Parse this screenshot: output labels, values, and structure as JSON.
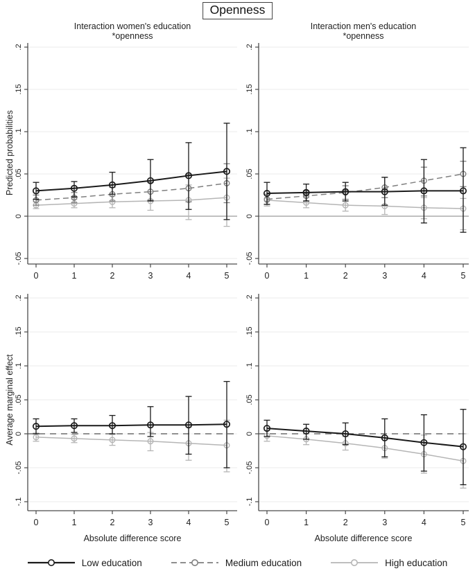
{
  "figure": {
    "title": "Openness"
  },
  "styles": {
    "low": {
      "color": "#1a1a1a",
      "dash": "",
      "width": 2
    },
    "medium": {
      "color": "#7f7f7f",
      "dash": "8,5",
      "width": 1.5
    },
    "high": {
      "color": "#b5b5b5",
      "dash": "",
      "width": 1.5
    }
  },
  "legend": {
    "items": [
      {
        "key": "low",
        "label": "Low education"
      },
      {
        "key": "medium",
        "label": "Medium education"
      },
      {
        "key": "high",
        "label": "High education"
      }
    ]
  },
  "chart_data": {
    "type": "line",
    "title": "Openness",
    "x": [
      0,
      1,
      2,
      3,
      4,
      5
    ],
    "xlabel": "Absolute difference score",
    "ytick_labels_top": [
      ".2",
      ".15",
      ".1",
      ".05",
      "0",
      "-.05"
    ],
    "ytick_values_top": [
      0.2,
      0.15,
      0.1,
      0.05,
      0,
      -0.05
    ],
    "ytick_labels_bottom": [
      ".2",
      ".15",
      ".1",
      ".05",
      "0",
      "-.05",
      "-.1"
    ],
    "ytick_values_bottom": [
      0.2,
      0.15,
      0.1,
      0.05,
      0,
      -0.05,
      -0.1
    ],
    "panels": [
      {
        "id": "top-left",
        "title_lines": [
          "Interaction women's education",
          "*openness"
        ],
        "ylabel": "Predicted probabilities",
        "zero_line": "solid",
        "series": [
          {
            "key": "low",
            "name": "Low education",
            "values": [
              0.03,
              0.033,
              0.037,
              0.042,
              0.048,
              0.053
            ],
            "ci_low": [
              0.02,
              0.023,
              0.026,
              0.018,
              0.008,
              -0.004
            ],
            "ci_high": [
              0.04,
              0.041,
              0.052,
              0.067,
              0.087,
              0.11
            ]
          },
          {
            "key": "medium",
            "name": "Medium education",
            "values": [
              0.019,
              0.022,
              0.026,
              0.029,
              0.033,
              0.039
            ],
            "ci_low": [
              0.013,
              0.016,
              0.018,
              0.019,
              0.017,
              0.016
            ],
            "ci_high": [
              0.025,
              0.028,
              0.034,
              0.04,
              0.049,
              0.062
            ]
          },
          {
            "key": "high",
            "name": "High education",
            "values": [
              0.013,
              0.015,
              0.017,
              0.018,
              0.019,
              0.022
            ],
            "ci_low": [
              0.009,
              0.01,
              0.01,
              0.007,
              -0.004,
              -0.012
            ],
            "ci_high": [
              0.017,
              0.02,
              0.024,
              0.029,
              0.037,
              0.045
            ]
          }
        ]
      },
      {
        "id": "top-right",
        "title_lines": [
          "Interaction men's education",
          "*openness"
        ],
        "zero_line": "solid",
        "series": [
          {
            "key": "low",
            "name": "Low education",
            "values": [
              0.027,
              0.028,
              0.029,
              0.029,
              0.03,
              0.03
            ],
            "ci_low": [
              0.014,
              0.018,
              0.018,
              0.013,
              -0.008,
              -0.019
            ],
            "ci_high": [
              0.04,
              0.038,
              0.04,
              0.046,
              0.067,
              0.081
            ]
          },
          {
            "key": "medium",
            "name": "Medium education",
            "values": [
              0.02,
              0.024,
              0.028,
              0.034,
              0.042,
              0.05
            ],
            "ci_low": [
              0.014,
              0.018,
              0.02,
              0.022,
              0.024,
              0.035
            ],
            "ci_high": [
              0.026,
              0.03,
              0.036,
              0.046,
              0.058,
              0.065
            ]
          },
          {
            "key": "high",
            "name": "High education",
            "values": [
              0.019,
              0.016,
              0.013,
              0.012,
              0.01,
              0.009
            ],
            "ci_low": [
              0.012,
              0.01,
              0.006,
              0.002,
              -0.003,
              -0.016
            ],
            "ci_high": [
              0.026,
              0.022,
              0.02,
              0.022,
              0.022,
              0.021
            ]
          }
        ]
      },
      {
        "id": "bottom-left",
        "ylabel": "Average marginal effect",
        "xlabel_show": true,
        "zero_line": "dashed",
        "series": [
          {
            "key": "low",
            "name": "Low education",
            "values": [
              0.011,
              0.012,
              0.012,
              0.013,
              0.013,
              0.014
            ],
            "ci_low": [
              0.0,
              0.002,
              0.0,
              -0.004,
              -0.03,
              -0.05
            ],
            "ci_high": [
              0.022,
              0.022,
              0.027,
              0.04,
              0.055,
              0.077
            ]
          },
          {
            "key": "high",
            "name": "High education",
            "values": [
              -0.005,
              -0.007,
              -0.009,
              -0.011,
              -0.014,
              -0.017
            ],
            "ci_low": [
              -0.011,
              -0.013,
              -0.017,
              -0.025,
              -0.039,
              -0.056
            ],
            "ci_high": [
              0.001,
              -0.001,
              -0.001,
              0.002,
              0.01,
              0.02
            ]
          }
        ]
      },
      {
        "id": "bottom-right",
        "xlabel_show": true,
        "zero_line": "dashed",
        "series": [
          {
            "key": "low",
            "name": "Low education",
            "values": [
              0.008,
              0.004,
              0.0,
              -0.006,
              -0.013,
              -0.019
            ],
            "ci_low": [
              -0.004,
              -0.008,
              -0.016,
              -0.034,
              -0.055,
              -0.075
            ],
            "ci_high": [
              0.02,
              0.014,
              0.016,
              0.022,
              0.028,
              0.036
            ]
          },
          {
            "key": "high",
            "name": "High education",
            "values": [
              -0.003,
              -0.008,
              -0.014,
              -0.021,
              -0.03,
              -0.04
            ],
            "ci_low": [
              -0.011,
              -0.016,
              -0.024,
              -0.036,
              -0.058,
              -0.08
            ],
            "ci_high": [
              0.005,
              0.0,
              -0.004,
              -0.006,
              -0.002,
              0.0
            ]
          }
        ]
      }
    ]
  }
}
